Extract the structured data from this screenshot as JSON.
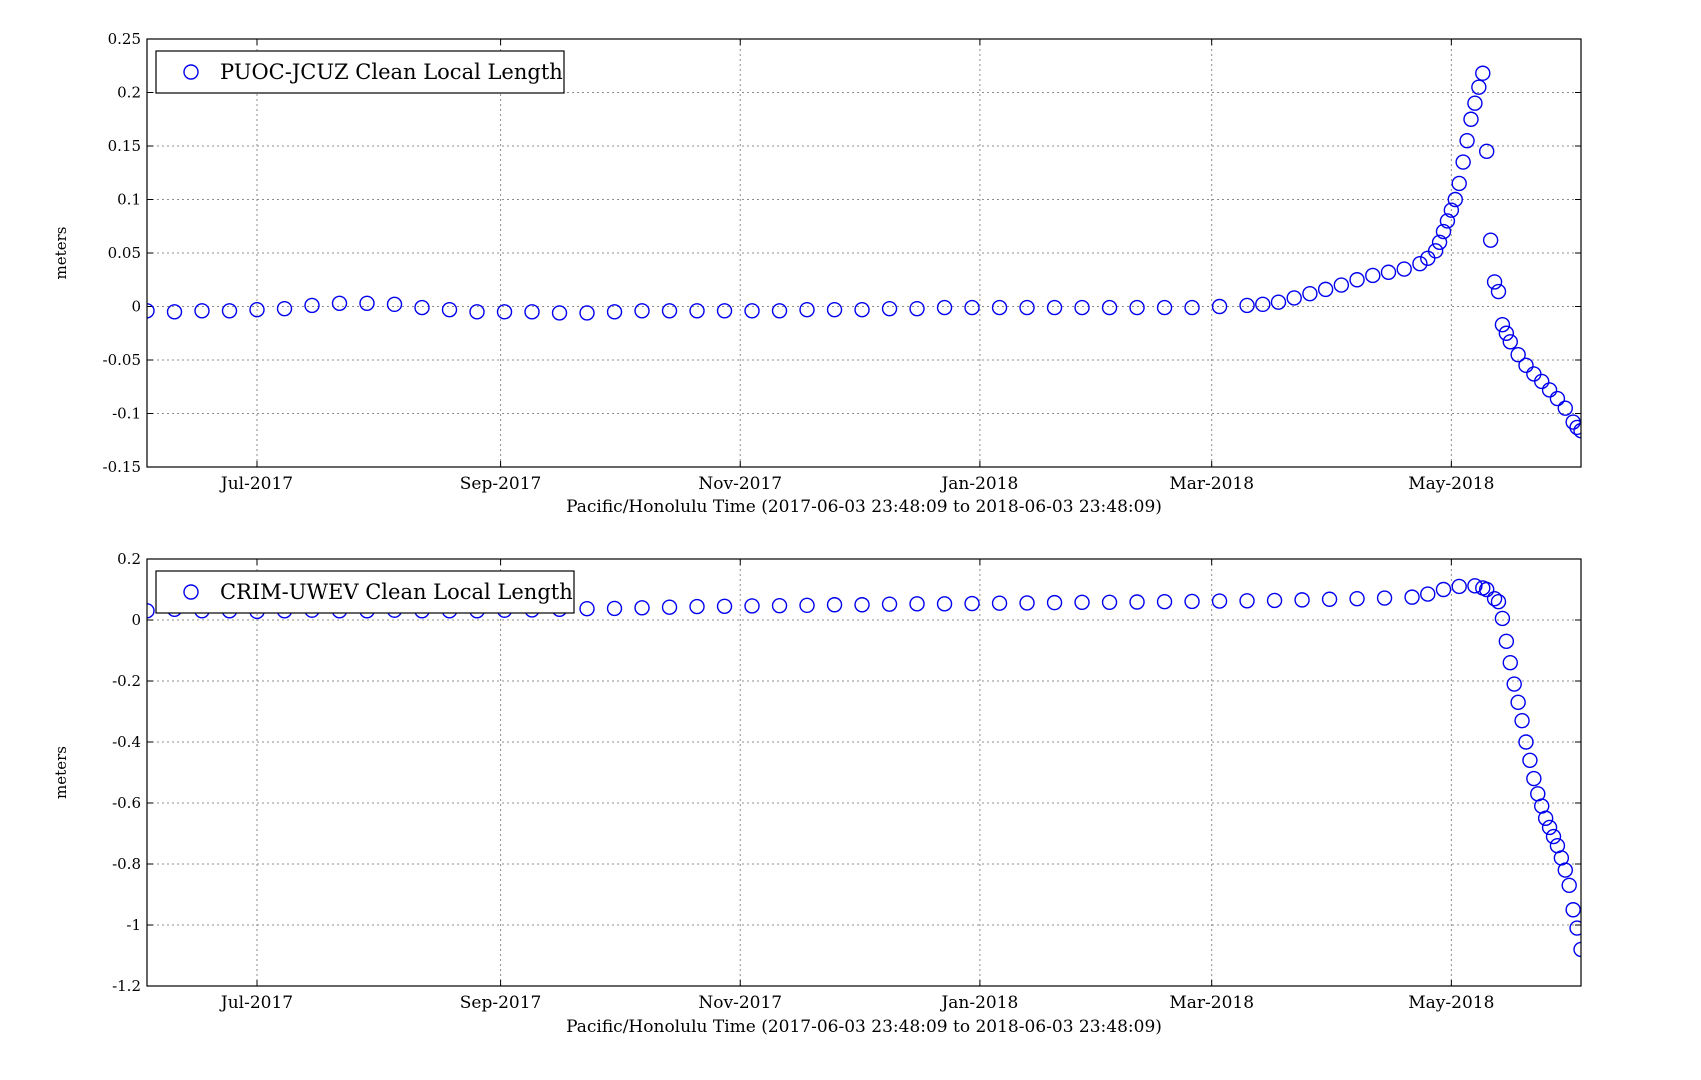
{
  "colors": {
    "marker": "#0000ee",
    "axes": "#000000",
    "grid": "#8c8c8c",
    "background": "#ffffff"
  },
  "charts": [
    {
      "type": "scatter",
      "legend": {
        "label": "PUOC-JCUZ Clean Local Length",
        "placement": "top-left"
      },
      "ylabel": "meters",
      "xlabel": "Pacific/Honolulu Time (2017-06-03 23:48:09 to 2018-06-03 23:48:09)",
      "ylim": [
        -0.15,
        0.25
      ],
      "yticks": [
        {
          "value": -0.15,
          "label": "-0.15"
        },
        {
          "value": -0.1,
          "label": "-0.1"
        },
        {
          "value": -0.05,
          "label": "-0.05"
        },
        {
          "value": 0,
          "label": "0"
        },
        {
          "value": 0.05,
          "label": "0.05"
        },
        {
          "value": 0.1,
          "label": "0.1"
        },
        {
          "value": 0.15,
          "label": "0.15"
        },
        {
          "value": 0.2,
          "label": "0.2"
        },
        {
          "value": 0.25,
          "label": "0.25"
        }
      ],
      "grid": true
    },
    {
      "type": "scatter",
      "legend": {
        "label": "CRIM-UWEV Clean Local Length",
        "placement": "top-left"
      },
      "ylabel": "meters",
      "xlabel": "Pacific/Honolulu Time (2017-06-03 23:48:09 to 2018-06-03 23:48:09)",
      "ylim": [
        -1.2,
        0.2
      ],
      "yticks": [
        {
          "value": -1.2,
          "label": "-1.2"
        },
        {
          "value": -1,
          "label": "-1"
        },
        {
          "value": -0.8,
          "label": "-0.8"
        },
        {
          "value": -0.6,
          "label": "-0.6"
        },
        {
          "value": -0.4,
          "label": "-0.4"
        },
        {
          "value": -0.2,
          "label": "-0.2"
        },
        {
          "value": 0,
          "label": "0"
        },
        {
          "value": 0.2,
          "label": "0.2"
        }
      ],
      "grid": true
    }
  ],
  "chart_data": [
    {
      "type": "scatter",
      "legend": "PUOC-JCUZ Clean Local Length",
      "xlabel": "Pacific/Honolulu Time (2017-06-03 23:48:09 to 2018-06-03 23:48:09)",
      "ylabel": "meters",
      "xlim": [
        "2017-06-03",
        "2018-06-03"
      ],
      "ylim": [
        -0.15,
        0.25
      ],
      "xticks": [
        {
          "value": "2017-07-01",
          "label": "Jul-2017"
        },
        {
          "value": "2017-09-01",
          "label": "Sep-2017"
        },
        {
          "value": "2017-11-01",
          "label": "Nov-2017"
        },
        {
          "value": "2018-01-01",
          "label": "Jan-2018"
        },
        {
          "value": "2018-03-01",
          "label": "Mar-2018"
        },
        {
          "value": "2018-05-01",
          "label": "May-2018"
        }
      ],
      "points": [
        [
          "2017-06-03",
          -0.004
        ],
        [
          "2017-06-10",
          -0.005
        ],
        [
          "2017-06-17",
          -0.004
        ],
        [
          "2017-06-24",
          -0.004
        ],
        [
          "2017-07-01",
          -0.003
        ],
        [
          "2017-07-08",
          -0.002
        ],
        [
          "2017-07-15",
          0.001
        ],
        [
          "2017-07-22",
          0.003
        ],
        [
          "2017-07-29",
          0.003
        ],
        [
          "2017-08-05",
          0.002
        ],
        [
          "2017-08-12",
          -0.001
        ],
        [
          "2017-08-19",
          -0.003
        ],
        [
          "2017-08-26",
          -0.005
        ],
        [
          "2017-09-02",
          -0.005
        ],
        [
          "2017-09-09",
          -0.005
        ],
        [
          "2017-09-16",
          -0.006
        ],
        [
          "2017-09-23",
          -0.006
        ],
        [
          "2017-09-30",
          -0.005
        ],
        [
          "2017-10-07",
          -0.004
        ],
        [
          "2017-10-14",
          -0.004
        ],
        [
          "2017-10-21",
          -0.004
        ],
        [
          "2017-10-28",
          -0.004
        ],
        [
          "2017-11-04",
          -0.004
        ],
        [
          "2017-11-11",
          -0.004
        ],
        [
          "2017-11-18",
          -0.003
        ],
        [
          "2017-11-25",
          -0.003
        ],
        [
          "2017-12-02",
          -0.003
        ],
        [
          "2017-12-09",
          -0.002
        ],
        [
          "2017-12-16",
          -0.002
        ],
        [
          "2017-12-23",
          -0.001
        ],
        [
          "2017-12-30",
          -0.001
        ],
        [
          "2018-01-06",
          -0.001
        ],
        [
          "2018-01-13",
          -0.001
        ],
        [
          "2018-01-20",
          -0.001
        ],
        [
          "2018-01-27",
          -0.001
        ],
        [
          "2018-02-03",
          -0.001
        ],
        [
          "2018-02-10",
          -0.001
        ],
        [
          "2018-02-17",
          -0.001
        ],
        [
          "2018-02-24",
          -0.001
        ],
        [
          "2018-03-03",
          0.0
        ],
        [
          "2018-03-10",
          0.001
        ],
        [
          "2018-03-14",
          0.002
        ],
        [
          "2018-03-18",
          0.004
        ],
        [
          "2018-03-22",
          0.008
        ],
        [
          "2018-03-26",
          0.012
        ],
        [
          "2018-03-30",
          0.016
        ],
        [
          "2018-04-03",
          0.02
        ],
        [
          "2018-04-07",
          0.025
        ],
        [
          "2018-04-11",
          0.029
        ],
        [
          "2018-04-15",
          0.032
        ],
        [
          "2018-04-19",
          0.035
        ],
        [
          "2018-04-23",
          0.04
        ],
        [
          "2018-04-25",
          0.045
        ],
        [
          "2018-04-27",
          0.052
        ],
        [
          "2018-04-28",
          0.06
        ],
        [
          "2018-04-29",
          0.07
        ],
        [
          "2018-04-30",
          0.08
        ],
        [
          "2018-05-01",
          0.09
        ],
        [
          "2018-05-02",
          0.1
        ],
        [
          "2018-05-03",
          0.115
        ],
        [
          "2018-05-04",
          0.135
        ],
        [
          "2018-05-05",
          0.155
        ],
        [
          "2018-05-06",
          0.175
        ],
        [
          "2018-05-07",
          0.19
        ],
        [
          "2018-05-08",
          0.205
        ],
        [
          "2018-05-09",
          0.218
        ],
        [
          "2018-05-10",
          0.145
        ],
        [
          "2018-05-11",
          0.062
        ],
        [
          "2018-05-12",
          0.023
        ],
        [
          "2018-05-13",
          0.014
        ],
        [
          "2018-05-14",
          -0.017
        ],
        [
          "2018-05-15",
          -0.025
        ],
        [
          "2018-05-16",
          -0.033
        ],
        [
          "2018-05-18",
          -0.045
        ],
        [
          "2018-05-20",
          -0.055
        ],
        [
          "2018-05-22",
          -0.063
        ],
        [
          "2018-05-24",
          -0.07
        ],
        [
          "2018-05-26",
          -0.078
        ],
        [
          "2018-05-28",
          -0.086
        ],
        [
          "2018-05-30",
          -0.095
        ],
        [
          "2018-06-01",
          -0.108
        ],
        [
          "2018-06-02",
          -0.113
        ],
        [
          "2018-06-03",
          -0.116
        ]
      ],
      "grid": true,
      "legend_placement": "top-left"
    },
    {
      "type": "scatter",
      "legend": "CRIM-UWEV Clean Local Length",
      "xlabel": "Pacific/Honolulu Time (2017-06-03 23:48:09 to 2018-06-03 23:48:09)",
      "ylabel": "meters",
      "xlim": [
        "2017-06-03",
        "2018-06-03"
      ],
      "ylim": [
        -1.2,
        0.2
      ],
      "xticks": [
        {
          "value": "2017-07-01",
          "label": "Jul-2017"
        },
        {
          "value": "2017-09-01",
          "label": "Sep-2017"
        },
        {
          "value": "2017-11-01",
          "label": "Nov-2017"
        },
        {
          "value": "2018-01-01",
          "label": "Jan-2018"
        },
        {
          "value": "2018-03-01",
          "label": "Mar-2018"
        },
        {
          "value": "2018-05-01",
          "label": "May-2018"
        }
      ],
      "points": [
        [
          "2017-06-03",
          0.03
        ],
        [
          "2017-06-10",
          0.035
        ],
        [
          "2017-06-17",
          0.03
        ],
        [
          "2017-06-24",
          0.03
        ],
        [
          "2017-07-01",
          0.028
        ],
        [
          "2017-07-08",
          0.03
        ],
        [
          "2017-07-15",
          0.032
        ],
        [
          "2017-07-22",
          0.03
        ],
        [
          "2017-07-29",
          0.03
        ],
        [
          "2017-08-05",
          0.032
        ],
        [
          "2017-08-12",
          0.03
        ],
        [
          "2017-08-19",
          0.03
        ],
        [
          "2017-08-26",
          0.03
        ],
        [
          "2017-09-02",
          0.032
        ],
        [
          "2017-09-09",
          0.033
        ],
        [
          "2017-09-16",
          0.035
        ],
        [
          "2017-09-23",
          0.037
        ],
        [
          "2017-09-30",
          0.038
        ],
        [
          "2017-10-07",
          0.04
        ],
        [
          "2017-10-14",
          0.042
        ],
        [
          "2017-10-21",
          0.044
        ],
        [
          "2017-10-28",
          0.045
        ],
        [
          "2017-11-04",
          0.046
        ],
        [
          "2017-11-11",
          0.047
        ],
        [
          "2017-11-18",
          0.048
        ],
        [
          "2017-11-25",
          0.05
        ],
        [
          "2017-12-02",
          0.05
        ],
        [
          "2017-12-09",
          0.052
        ],
        [
          "2017-12-16",
          0.053
        ],
        [
          "2017-12-23",
          0.053
        ],
        [
          "2017-12-30",
          0.054
        ],
        [
          "2018-01-06",
          0.055
        ],
        [
          "2018-01-13",
          0.056
        ],
        [
          "2018-01-20",
          0.057
        ],
        [
          "2018-01-27",
          0.058
        ],
        [
          "2018-02-03",
          0.058
        ],
        [
          "2018-02-10",
          0.059
        ],
        [
          "2018-02-17",
          0.06
        ],
        [
          "2018-02-24",
          0.061
        ],
        [
          "2018-03-03",
          0.062
        ],
        [
          "2018-03-10",
          0.063
        ],
        [
          "2018-03-17",
          0.064
        ],
        [
          "2018-03-24",
          0.066
        ],
        [
          "2018-03-31",
          0.068
        ],
        [
          "2018-04-07",
          0.07
        ],
        [
          "2018-04-14",
          0.072
        ],
        [
          "2018-04-21",
          0.075
        ],
        [
          "2018-04-25",
          0.085
        ],
        [
          "2018-04-29",
          0.1
        ],
        [
          "2018-05-03",
          0.11
        ],
        [
          "2018-05-07",
          0.112
        ],
        [
          "2018-05-09",
          0.105
        ],
        [
          "2018-05-10",
          0.1
        ],
        [
          "2018-05-12",
          0.07
        ],
        [
          "2018-05-13",
          0.06
        ],
        [
          "2018-05-14",
          0.005
        ],
        [
          "2018-05-15",
          -0.07
        ],
        [
          "2018-05-16",
          -0.14
        ],
        [
          "2018-05-17",
          -0.21
        ],
        [
          "2018-05-18",
          -0.27
        ],
        [
          "2018-05-19",
          -0.33
        ],
        [
          "2018-05-20",
          -0.4
        ],
        [
          "2018-05-21",
          -0.46
        ],
        [
          "2018-05-22",
          -0.52
        ],
        [
          "2018-05-23",
          -0.57
        ],
        [
          "2018-05-24",
          -0.61
        ],
        [
          "2018-05-25",
          -0.65
        ],
        [
          "2018-05-26",
          -0.68
        ],
        [
          "2018-05-27",
          -0.71
        ],
        [
          "2018-05-28",
          -0.74
        ],
        [
          "2018-05-29",
          -0.78
        ],
        [
          "2018-05-30",
          -0.82
        ],
        [
          "2018-05-31",
          -0.87
        ],
        [
          "2018-06-01",
          -0.95
        ],
        [
          "2018-06-02",
          -1.01
        ],
        [
          "2018-06-03",
          -1.08
        ]
      ],
      "grid": true,
      "legend_placement": "top-left"
    }
  ]
}
